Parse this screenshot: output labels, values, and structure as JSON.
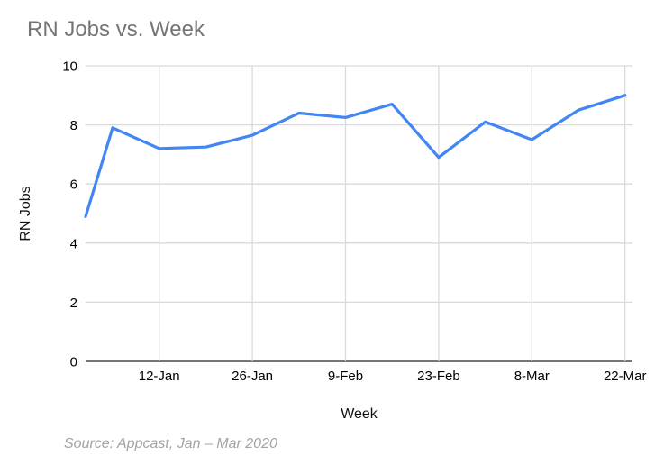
{
  "chart_data": {
    "type": "line",
    "title": "RN Jobs vs. Week",
    "xlabel": "Week",
    "ylabel": "RN Jobs",
    "ylim": [
      0,
      10
    ],
    "y_tick_labels": [
      "0",
      "2",
      "4",
      "6",
      "8",
      "10"
    ],
    "x_tick_labels": [
      "12-Jan",
      "26-Jan",
      "9-Feb",
      "23-Feb",
      "8-Mar",
      "22-Mar"
    ],
    "tick_point_indices": [
      1,
      3,
      5,
      7,
      9,
      11
    ],
    "grid": true,
    "legend": "none",
    "series": [
      {
        "name": "RN Jobs",
        "edge_start_value": 4.9,
        "weekly_values": [
          7.9,
          7.2,
          7.25,
          7.65,
          8.4,
          8.25,
          8.7,
          6.9,
          8.1,
          7.5,
          8.5,
          9.0
        ]
      }
    ],
    "colors": {
      "line": "#4285f4",
      "title_text": "#757575",
      "axis_text": "#000000",
      "gridline": "#dadada",
      "axis_line": "#757575",
      "source_text": "#a3a3a3"
    }
  },
  "footer": {
    "source_note": "Source: Appcast, Jan – Mar 2020"
  }
}
